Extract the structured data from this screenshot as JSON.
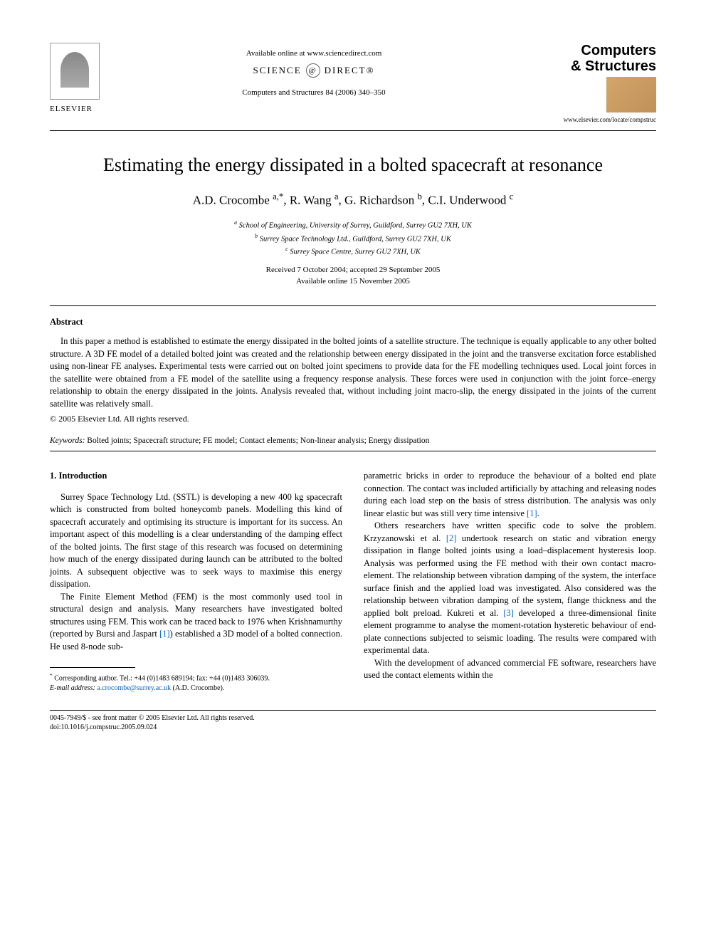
{
  "header": {
    "publisher": "ELSEVIER",
    "available_text": "Available online at www.sciencedirect.com",
    "sd_prefix": "SCIENCE",
    "sd_suffix": "DIRECT®",
    "journal_ref": "Computers and Structures 84 (2006) 340–350",
    "journal_title_line1": "Computers",
    "journal_title_line2": "& Structures",
    "journal_url": "www.elsevier.com/locate/compstruc"
  },
  "article": {
    "title": "Estimating the energy dissipated in a bolted spacecraft at resonance",
    "authors": "A.D. Crocombe ",
    "author_a_sup": "a,*",
    "author_2": ", R. Wang ",
    "author_2_sup": "a",
    "author_3": ", G. Richardson ",
    "author_3_sup": "b",
    "author_4": ", C.I. Underwood ",
    "author_4_sup": "c",
    "affil_a_sup": "a",
    "affil_a": " School of Engineering, University of Surrey, Guildford, Surrey GU2 7XH, UK",
    "affil_b_sup": "b",
    "affil_b": " Surrey Space Technology Ltd., Guildford, Surrey GU2 7XH, UK",
    "affil_c_sup": "c",
    "affil_c": " Surrey Space Centre, Surrey GU2 7XH, UK",
    "dates_line1": "Received 7 October 2004; accepted 29 September 2005",
    "dates_line2": "Available online 15 November 2005"
  },
  "abstract": {
    "heading": "Abstract",
    "text": "In this paper a method is established to estimate the energy dissipated in the bolted joints of a satellite structure. The technique is equally applicable to any other bolted structure. A 3D FE model of a detailed bolted joint was created and the relationship between energy dissipated in the joint and the transverse excitation force established using non-linear FE analyses. Experimental tests were carried out on bolted joint specimens to provide data for the FE modelling techniques used. Local joint forces in the satellite were obtained from a FE model of the satellite using a frequency response analysis. These forces were used in conjunction with the joint force–energy relationship to obtain the energy dissipated in the joints. Analysis revealed that, without including joint macro-slip, the energy dissipated in the joints of the current satellite was relatively small.",
    "copyright": "© 2005 Elsevier Ltd. All rights reserved."
  },
  "keywords": {
    "label": "Keywords:",
    "text": " Bolted joints; Spacecraft structure; FE model; Contact elements; Non-linear analysis; Energy dissipation"
  },
  "intro": {
    "heading": "1. Introduction",
    "col1_p1": "Surrey Space Technology Ltd. (SSTL) is developing a new 400 kg spacecraft which is constructed from bolted honeycomb panels. Modelling this kind of spacecraft accurately and optimising its structure is important for its success. An important aspect of this modelling is a clear understanding of the damping effect of the bolted joints. The first stage of this research was focused on determining how much of the energy dissipated during launch can be attributed to the bolted joints. A subsequent objective was to seek ways to maximise this energy dissipation.",
    "col1_p2a": "The Finite Element Method (FEM) is the most commonly used tool in structural design and analysis. Many researchers have investigated bolted structures using FEM. This work can be traced back to 1976 when Krishnamurthy (reported by Bursi and Jaspart ",
    "ref1": "[1]",
    "col1_p2b": ") established a 3D model of a bolted connection. He used 8-node sub-",
    "col2_p1a": "parametric bricks in order to reproduce the behaviour of a bolted end plate connection. The contact was included artificially by attaching and releasing nodes during each load step on the basis of stress distribution. The analysis was only linear elastic but was still very time intensive ",
    "ref1b": "[1]",
    "col2_p1b": ".",
    "col2_p2a": "Others researchers have written specific code to solve the problem. Krzyzanowski et al. ",
    "ref2": "[2]",
    "col2_p2b": " undertook research on static and vibration energy dissipation in flange bolted joints using a load–displacement hysteresis loop. Analysis was performed using the FE method with their own contact macro-element. The relationship between vibration damping of the system, the interface surface finish and the applied load was investigated. Also considered was the relationship between vibration damping of the system, flange thickness and the applied bolt preload. Kukreti et al. ",
    "ref3": "[3]",
    "col2_p2c": " developed a three-dimensional finite element programme to analyse the moment-rotation hysteretic behaviour of end-plate connections subjected to seismic loading. The results were compared with experimental data.",
    "col2_p3": "With the development of advanced commercial FE software, researchers have used the contact elements within the"
  },
  "footnote": {
    "corr_label": "*",
    "corr_text": " Corresponding author. Tel.: +44 (0)1483 689194; fax: +44 (0)1483 306039.",
    "email_label": "E-mail address:",
    "email": " a.crocombe@surrey.ac.uk",
    "email_suffix": " (A.D. Crocombe)."
  },
  "footer": {
    "line1": "0045-7949/$ - see front matter © 2005 Elsevier Ltd. All rights reserved.",
    "line2": "doi:10.1016/j.compstruc.2005.09.024"
  },
  "colors": {
    "text": "#000000",
    "link": "#0066cc",
    "background": "#ffffff",
    "logo_gradient_start": "#888888",
    "logo_gradient_end": "#aaaaaa",
    "journal_img_start": "#d4a66a",
    "journal_img_end": "#c0905a"
  }
}
